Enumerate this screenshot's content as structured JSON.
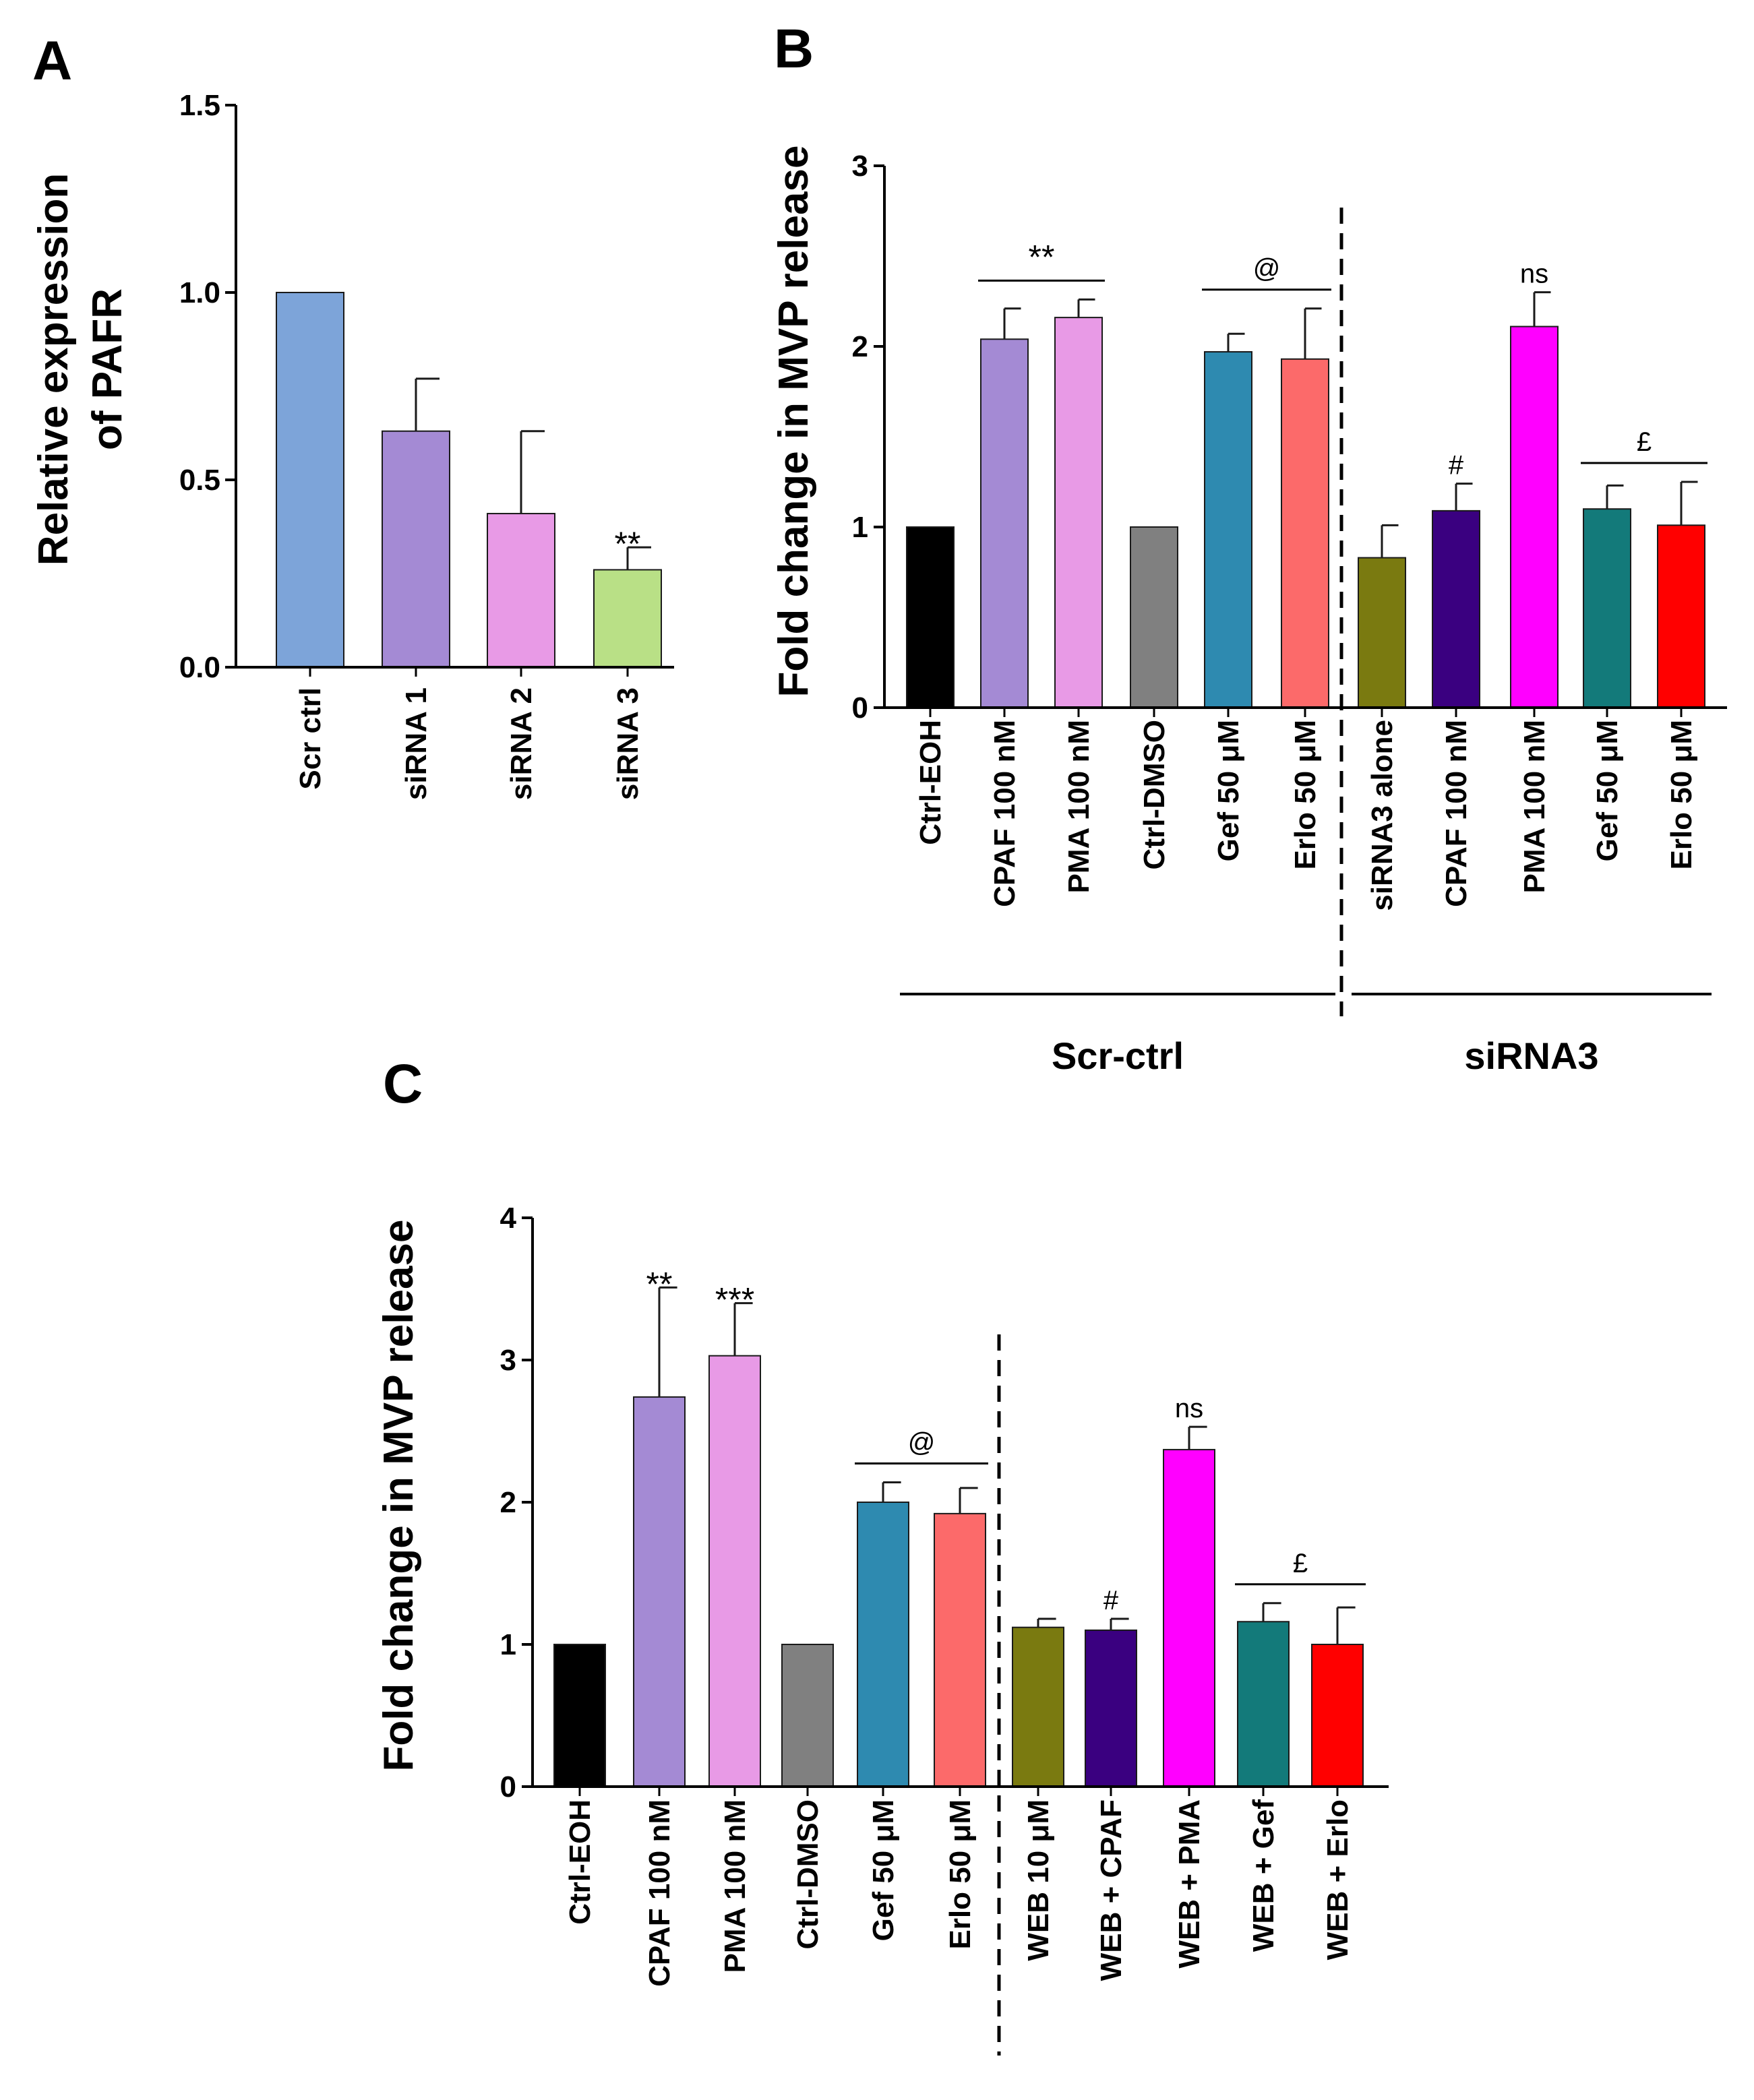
{
  "chart_data": [
    {
      "panel": "A",
      "type": "bar",
      "ylabel_lines": [
        "Relative expression",
        "of PAFR"
      ],
      "ylim": [
        0,
        1.5
      ],
      "yticks": [
        "0.0",
        "0.5",
        "1.0",
        "1.5"
      ],
      "categories": [
        "Scr ctrl",
        "siRNA 1",
        "siRNA 2",
        "siRNA 3"
      ],
      "values": [
        1.0,
        0.63,
        0.41,
        0.26
      ],
      "errors": [
        0,
        0.14,
        0.22,
        0.06
      ],
      "colors": [
        "#7da4d9",
        "#a48ad4",
        "#e89ae6",
        "#b9e086"
      ],
      "annotations": [
        {
          "text": "**",
          "category": "siRNA 3",
          "kind": "star"
        }
      ]
    },
    {
      "panel": "B",
      "type": "bar",
      "ylabel": "Fold change in MVP release",
      "ylim": [
        0,
        3
      ],
      "yticks": [
        "0",
        "1",
        "2",
        "3"
      ],
      "categories": [
        "Ctrl-EOH",
        "CPAF 100 nM",
        "PMA 100 nM",
        "Ctrl-DMSO",
        "Gef 50 μM",
        "Erlo 50 μM",
        "siRNA3 alone",
        "CPAF 100 nM",
        "PMA 100 nM",
        "Gef 50 μM",
        "Erlo 50 μM"
      ],
      "values": [
        1.0,
        2.04,
        2.16,
        1.0,
        1.97,
        1.93,
        0.83,
        1.09,
        2.11,
        1.1,
        1.01
      ],
      "errors": [
        0,
        0.17,
        0.1,
        0,
        0.1,
        0.28,
        0.18,
        0.15,
        0.19,
        0.13,
        0.24
      ],
      "colors": [
        "#000000",
        "#a48ad4",
        "#e89ae6",
        "#808080",
        "#2e8ab0",
        "#fc6a6a",
        "#7a7a10",
        "#3a0080",
        "#ff00ff",
        "#137a7a",
        "#ff0000"
      ],
      "groups": [
        {
          "label": "Scr-ctrl",
          "from": 0,
          "to": 5
        },
        {
          "label": "siRNA3",
          "from": 6,
          "to": 10
        }
      ],
      "divider_after": 5,
      "annotations": [
        {
          "text": "**",
          "from": 1,
          "to": 2,
          "kind": "star"
        },
        {
          "text": "@",
          "from": 4,
          "to": 5,
          "kind": "sym"
        },
        {
          "text": "ns",
          "from": 8,
          "to": 8,
          "kind": "sym"
        },
        {
          "text": "#",
          "from": 7,
          "to": 7,
          "kind": "sym"
        },
        {
          "text": "£",
          "from": 9,
          "to": 10,
          "kind": "sym"
        }
      ]
    },
    {
      "panel": "C",
      "type": "bar",
      "ylabel": "Fold change in MVP release",
      "ylim": [
        0,
        4
      ],
      "yticks": [
        "0",
        "1",
        "2",
        "3",
        "4"
      ],
      "categories": [
        "Ctrl-EOH",
        "CPAF 100 nM",
        "PMA 100 nM",
        "Ctrl-DMSO",
        "Gef 50 μM",
        "Erlo 50 μM",
        "WEB 10 μM",
        "WEB + CPAF",
        "WEB + PMA",
        "WEB + Gef",
        "WEB + Erlo"
      ],
      "values": [
        1.0,
        2.74,
        3.03,
        1.0,
        2.0,
        1.92,
        1.12,
        1.1,
        2.37,
        1.16,
        1.0
      ],
      "errors": [
        0,
        0.77,
        0.37,
        0,
        0.14,
        0.18,
        0.06,
        0.08,
        0.16,
        0.13,
        0.26
      ],
      "colors": [
        "#000000",
        "#a48ad4",
        "#e89ae6",
        "#808080",
        "#2e8ab0",
        "#fc6a6a",
        "#7a7a10",
        "#3a0080",
        "#ff00ff",
        "#137a7a",
        "#ff0000"
      ],
      "divider_after": 5,
      "annotations": [
        {
          "text": "**",
          "from": 1,
          "to": 1,
          "kind": "star"
        },
        {
          "text": "***",
          "from": 2,
          "to": 2,
          "kind": "star"
        },
        {
          "text": "@",
          "from": 4,
          "to": 5,
          "kind": "sym"
        },
        {
          "text": "ns",
          "from": 8,
          "to": 8,
          "kind": "sym"
        },
        {
          "text": "#",
          "from": 7,
          "to": 7,
          "kind": "sym"
        },
        {
          "text": "£",
          "from": 9,
          "to": 10,
          "kind": "sym"
        }
      ]
    }
  ]
}
